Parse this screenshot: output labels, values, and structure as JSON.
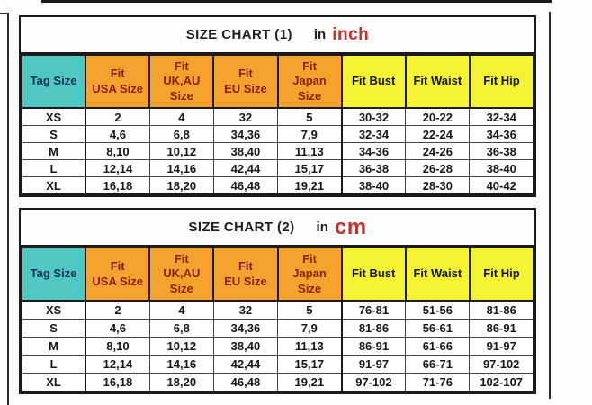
{
  "colors": {
    "tag_size_header_bg": "#4fc7c3",
    "intl_size_header_bg": "#f5a12d",
    "measurement_header_bg": "#f3f233",
    "intl_header_text": "#8b1e14",
    "tag_header_text": "#1c3152",
    "unit_accent": "#c5302b",
    "border": "#1b1b1b"
  },
  "chart_data": [
    {
      "type": "table",
      "title": "SIZE CHART (1)",
      "unit_prefix": "in",
      "unit": "inch",
      "columns": [
        "Tag Size",
        "Fit\nUSA Size",
        "Fit\nUK,AU\nSize",
        "Fit\nEU Size",
        "Fit\nJapan\nSize",
        "Fit Bust",
        "Fit Waist",
        "Fit Hip"
      ],
      "rows": [
        [
          "XS",
          "2",
          "4",
          "32",
          "5",
          "30-32",
          "20-22",
          "32-34"
        ],
        [
          "S",
          "4,6",
          "6,8",
          "34,36",
          "7,9",
          "32-34",
          "22-24",
          "34-36"
        ],
        [
          "M",
          "8,10",
          "10,12",
          "38,40",
          "11,13",
          "34-36",
          "24-26",
          "36-38"
        ],
        [
          "L",
          "12,14",
          "14,16",
          "42,44",
          "15,17",
          "36-38",
          "26-28",
          "38-40"
        ],
        [
          "XL",
          "16,18",
          "18,20",
          "46,48",
          "19,21",
          "38-40",
          "28-30",
          "40-42"
        ]
      ]
    },
    {
      "type": "table",
      "title": "SIZE CHART (2)",
      "unit_prefix": "in",
      "unit": "cm",
      "columns": [
        "Tag Size",
        "Fit\nUSA Size",
        "Fit\nUK,AU\nSize",
        "Fit\nEU Size",
        "Fit\nJapan\nSize",
        "Fit Bust",
        "Fit Waist",
        "Fit Hip"
      ],
      "rows": [
        [
          "XS",
          "2",
          "4",
          "32",
          "5",
          "76-81",
          "51-56",
          "81-86"
        ],
        [
          "S",
          "4,6",
          "6,8",
          "34,36",
          "7,9",
          "81-86",
          "56-61",
          "86-91"
        ],
        [
          "M",
          "8,10",
          "10,12",
          "38,40",
          "11,13",
          "86-91",
          "61-66",
          "91-97"
        ],
        [
          "L",
          "12,14",
          "14,16",
          "42,44",
          "15,17",
          "91-97",
          "66-71",
          "97-102"
        ],
        [
          "XL",
          "16,18",
          "18,20",
          "46,48",
          "19,21",
          "97-102",
          "71-76",
          "102-107"
        ]
      ]
    }
  ]
}
